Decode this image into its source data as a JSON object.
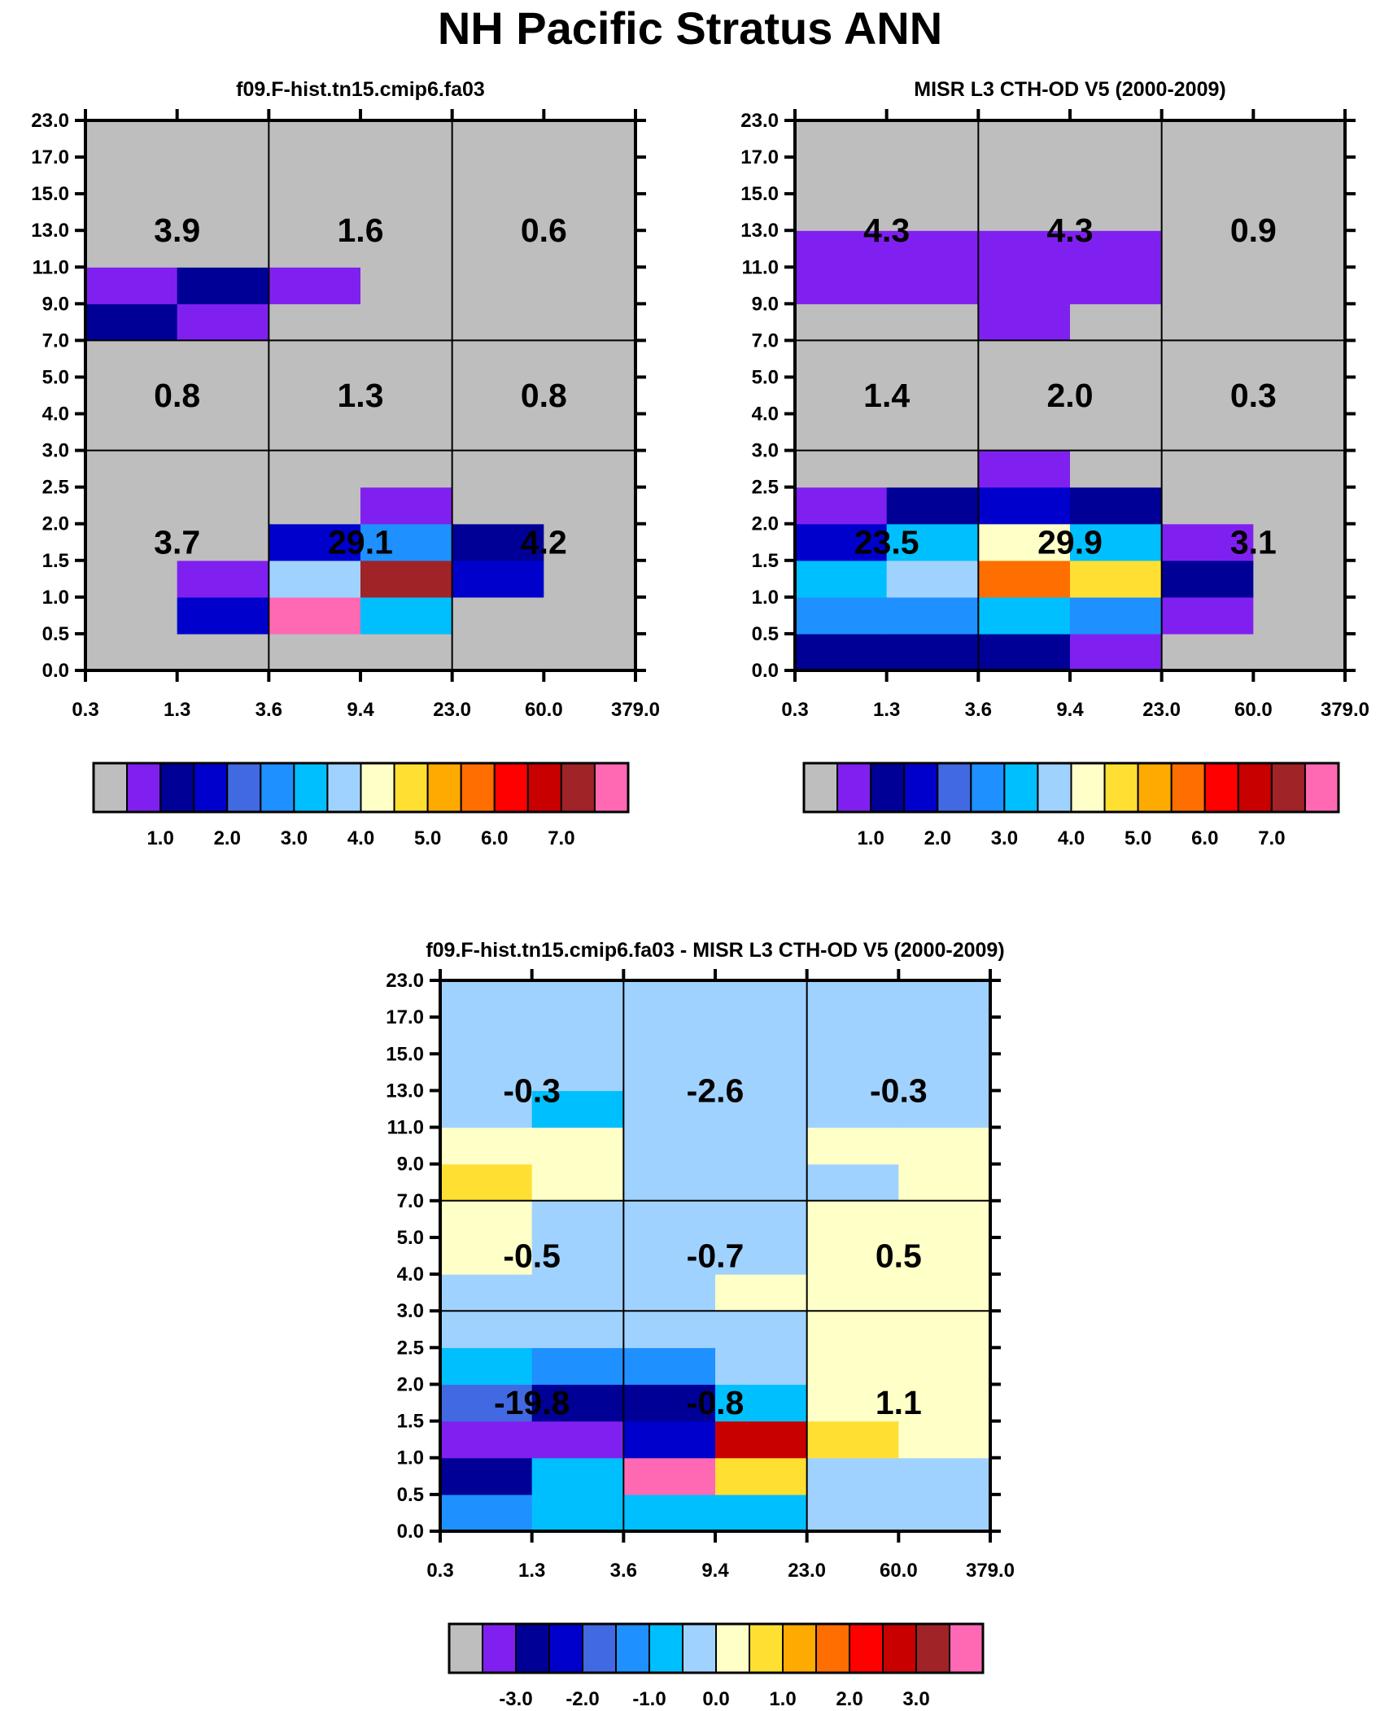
{
  "title": "NH Pacific Stratus ANN",
  "colormap": [
    "#bebebe",
    "#8020f0",
    "#000096",
    "#0000cd",
    "#4169e1",
    "#1e90ff",
    "#00bfff",
    "#a0d2ff",
    "#ffffc8",
    "#ffe032",
    "#ffaa00",
    "#ff6e00",
    "#ff0000",
    "#c80000",
    "#a02328",
    "#ff69b4"
  ],
  "chart_data": [
    {
      "type": "heatmap",
      "title": "f09.F-hist.tn15.cmip6.fa03",
      "x_ticks": [
        "0.3",
        "1.3",
        "3.6",
        "9.4",
        "23.0",
        "60.0",
        "379.0"
      ],
      "y_ticks": [
        "0.0",
        "0.5",
        "1.0",
        "1.5",
        "2.0",
        "2.5",
        "3.0",
        "4.0",
        "5.0",
        "7.0",
        "9.0",
        "11.0",
        "13.0",
        "15.0",
        "17.0",
        "23.0"
      ],
      "cell_color_index_rows_bottom_to_top": [
        [
          0,
          0,
          0,
          0,
          0,
          0
        ],
        [
          0,
          3,
          15,
          6,
          0,
          0
        ],
        [
          0,
          1,
          7,
          14,
          3,
          0
        ],
        [
          0,
          0,
          3,
          5,
          2,
          0
        ],
        [
          0,
          0,
          0,
          1,
          0,
          0
        ],
        [
          0,
          0,
          0,
          0,
          0,
          0
        ],
        [
          0,
          0,
          0,
          0,
          0,
          0
        ],
        [
          0,
          0,
          0,
          0,
          0,
          0
        ],
        [
          0,
          0,
          0,
          0,
          0,
          0
        ],
        [
          2,
          1,
          0,
          0,
          0,
          0
        ],
        [
          1,
          2,
          1,
          0,
          0,
          0
        ],
        [
          0,
          0,
          0,
          0,
          0,
          0
        ],
        [
          0,
          0,
          0,
          0,
          0,
          0
        ],
        [
          0,
          0,
          0,
          0,
          0,
          0
        ],
        [
          0,
          0,
          0,
          0,
          0,
          0
        ]
      ],
      "box_values_top_to_bottom": [
        [
          "3.9",
          "1.6",
          "0.6"
        ],
        [
          "0.8",
          "1.3",
          "0.8"
        ],
        [
          "3.7",
          "29.1",
          "4.2"
        ]
      ],
      "colorbar_labels": [
        "1.0",
        "2.0",
        "3.0",
        "4.0",
        "5.0",
        "6.0",
        "7.0"
      ]
    },
    {
      "type": "heatmap",
      "title": "MISR L3 CTH-OD V5 (2000-2009)",
      "x_ticks": [
        "0.3",
        "1.3",
        "3.6",
        "9.4",
        "23.0",
        "60.0",
        "379.0"
      ],
      "y_ticks": [
        "0.0",
        "0.5",
        "1.0",
        "1.5",
        "2.0",
        "2.5",
        "3.0",
        "4.0",
        "5.0",
        "7.0",
        "9.0",
        "11.0",
        "13.0",
        "15.0",
        "17.0",
        "23.0"
      ],
      "cell_color_index_rows_bottom_to_top": [
        [
          2,
          2,
          2,
          1,
          0,
          0
        ],
        [
          5,
          5,
          6,
          5,
          1,
          0
        ],
        [
          6,
          7,
          11,
          9,
          2,
          0
        ],
        [
          3,
          6,
          8,
          6,
          1,
          0
        ],
        [
          1,
          2,
          3,
          2,
          0,
          0
        ],
        [
          0,
          0,
          1,
          0,
          0,
          0
        ],
        [
          0,
          0,
          0,
          0,
          0,
          0
        ],
        [
          0,
          0,
          0,
          0,
          0,
          0
        ],
        [
          0,
          0,
          0,
          0,
          0,
          0
        ],
        [
          0,
          0,
          1,
          0,
          0,
          0
        ],
        [
          1,
          1,
          1,
          1,
          0,
          0
        ],
        [
          1,
          1,
          1,
          1,
          0,
          0
        ],
        [
          0,
          0,
          0,
          0,
          0,
          0
        ],
        [
          0,
          0,
          0,
          0,
          0,
          0
        ],
        [
          0,
          0,
          0,
          0,
          0,
          0
        ]
      ],
      "box_values_top_to_bottom": [
        [
          "4.3",
          "4.3",
          "0.9"
        ],
        [
          "1.4",
          "2.0",
          "0.3"
        ],
        [
          "23.5",
          "29.9",
          "3.1"
        ]
      ],
      "colorbar_labels": [
        "1.0",
        "2.0",
        "3.0",
        "4.0",
        "5.0",
        "6.0",
        "7.0"
      ]
    },
    {
      "type": "heatmap",
      "title": "f09.F-hist.tn15.cmip6.fa03 - MISR L3 CTH-OD V5 (2000-2009)",
      "x_ticks": [
        "0.3",
        "1.3",
        "3.6",
        "9.4",
        "23.0",
        "60.0",
        "379.0"
      ],
      "y_ticks": [
        "0.0",
        "0.5",
        "1.0",
        "1.5",
        "2.0",
        "2.5",
        "3.0",
        "4.0",
        "5.0",
        "7.0",
        "9.0",
        "11.0",
        "13.0",
        "15.0",
        "17.0",
        "23.0"
      ],
      "cell_color_index_rows_bottom_to_top": [
        [
          5,
          6,
          6,
          6,
          7,
          7
        ],
        [
          2,
          6,
          15,
          9,
          7,
          7
        ],
        [
          1,
          1,
          3,
          13,
          9,
          8
        ],
        [
          4,
          2,
          2,
          6,
          8,
          8
        ],
        [
          6,
          5,
          5,
          7,
          8,
          8
        ],
        [
          7,
          7,
          7,
          7,
          8,
          8
        ],
        [
          7,
          7,
          7,
          8,
          8,
          8
        ],
        [
          8,
          7,
          7,
          7,
          8,
          8
        ],
        [
          8,
          7,
          7,
          7,
          8,
          8
        ],
        [
          9,
          8,
          7,
          7,
          7,
          8
        ],
        [
          8,
          8,
          7,
          7,
          8,
          8
        ],
        [
          7,
          6,
          7,
          7,
          7,
          7
        ],
        [
          7,
          7,
          7,
          7,
          7,
          7
        ],
        [
          7,
          7,
          7,
          7,
          7,
          7
        ],
        [
          7,
          7,
          7,
          7,
          7,
          7
        ]
      ],
      "box_values_top_to_bottom": [
        [
          "-0.3",
          "-2.6",
          "-0.3"
        ],
        [
          "-0.5",
          "-0.7",
          "0.5"
        ],
        [
          "-19.8",
          "-0.8",
          "1.1"
        ]
      ],
      "colorbar_labels": [
        "-3.0",
        "-2.0",
        "-1.0",
        "0.0",
        "1.0",
        "2.0",
        "3.0"
      ]
    }
  ]
}
